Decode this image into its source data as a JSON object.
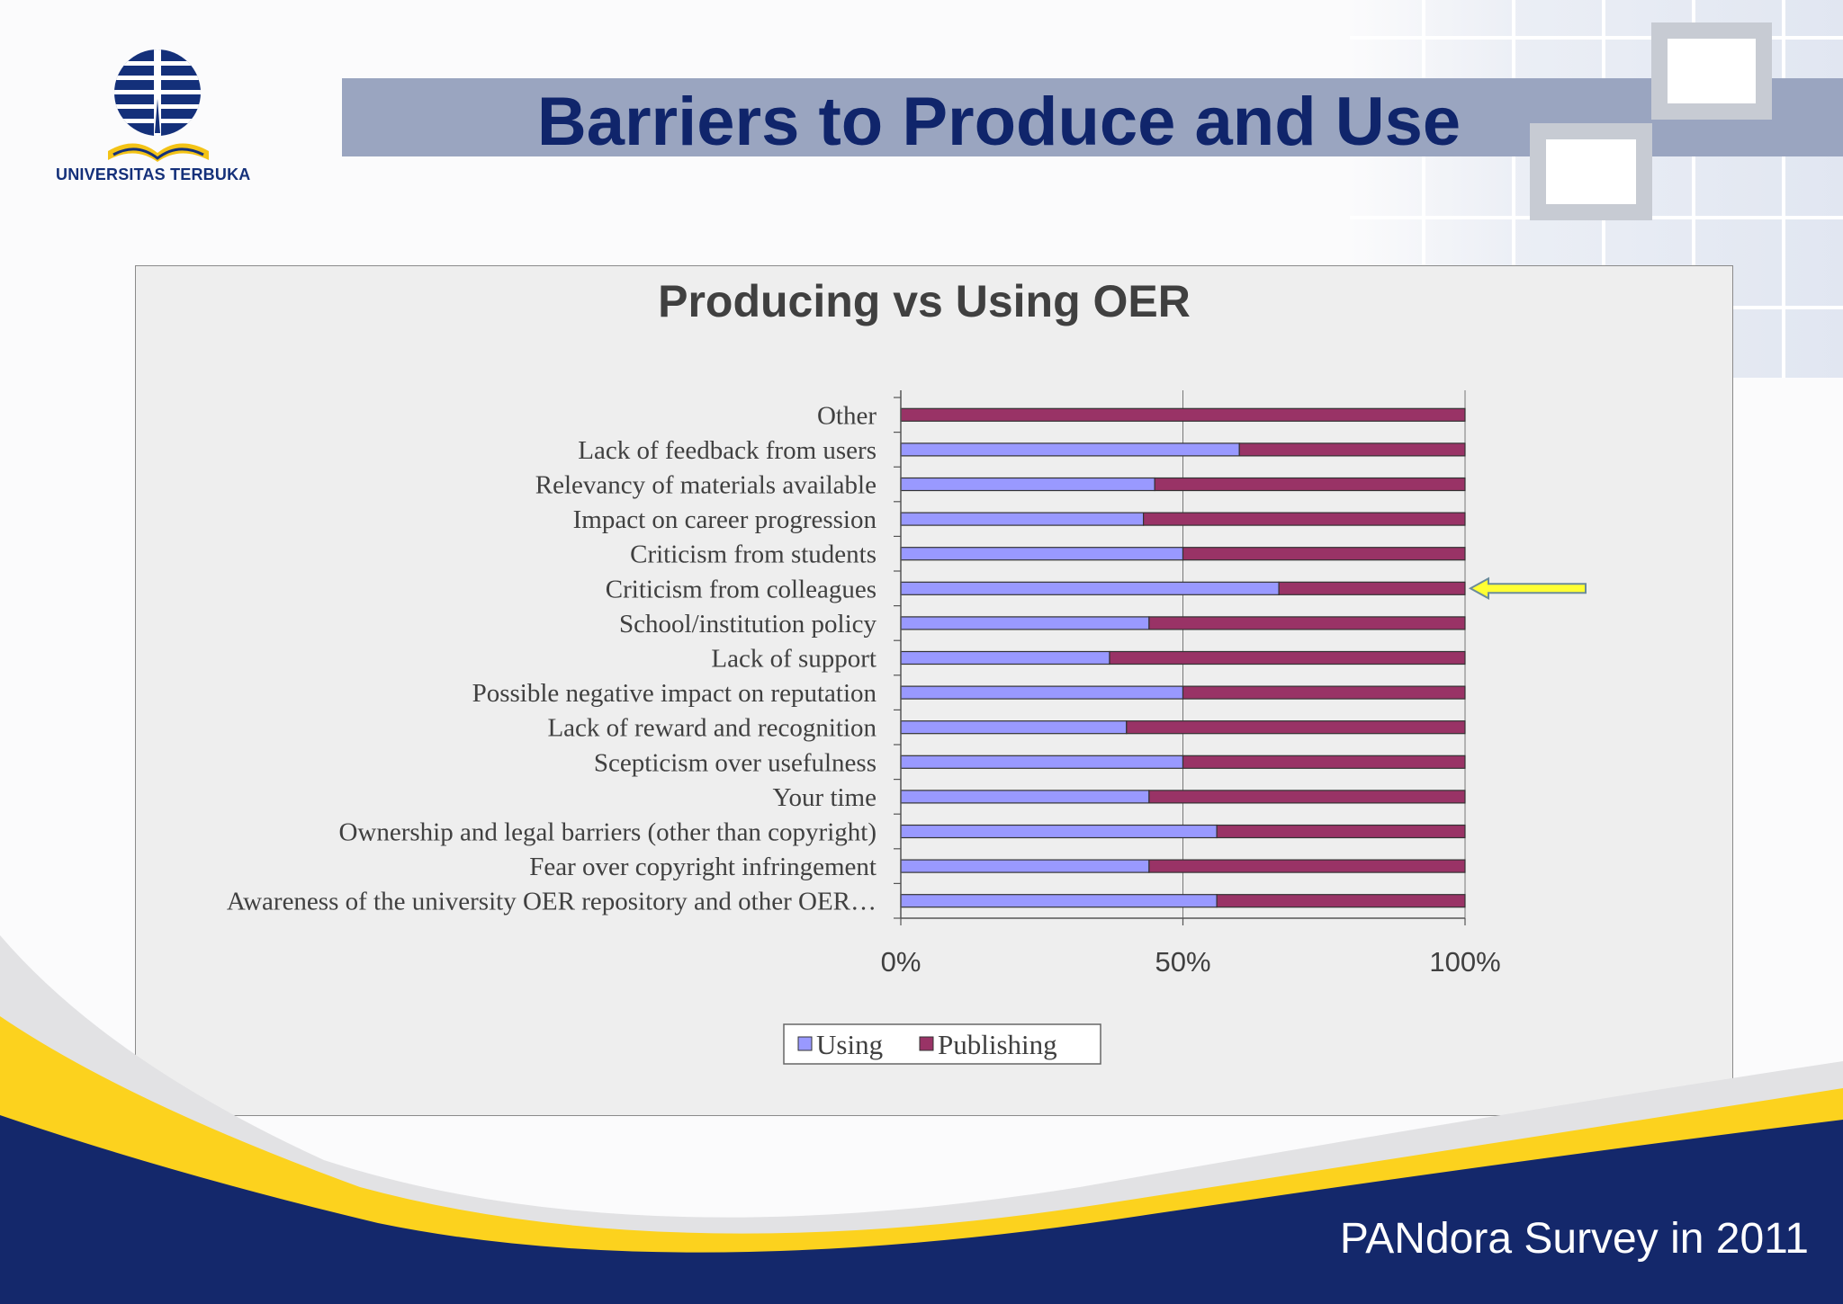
{
  "slide": {
    "title": "Barriers to Produce and Use",
    "footer": "PANdora Survey  in 2011",
    "logo_text": "UNIVERSITAS TERBUKA"
  },
  "colors": {
    "title": "#10256b",
    "title_band": "#9aa5c0",
    "using": "#9999ff",
    "publishing": "#993366",
    "footer_navy": "#14286b",
    "footer_yellow": "#fcd21e",
    "arrow": "#ffff33"
  },
  "chart_data": {
    "type": "bar",
    "orientation": "horizontal",
    "stacking": "percent",
    "title": "Producing vs Using OER",
    "categories": [
      "Other",
      "Lack of feedback from users",
      "Relevancy of materials available",
      "Impact on career progression",
      "Criticism from students",
      "Criticism from colleagues",
      "School/institution policy",
      "Lack of support",
      "Possible negative impact on reputation",
      "Lack of reward and recognition",
      "Scepticism over usefulness",
      "Your time",
      "Ownership and legal barriers (other than copyright)",
      "Fear over copyright infringement",
      "Awareness of the university OER repository and other OER…"
    ],
    "series": [
      {
        "name": "Using",
        "values": [
          0,
          60,
          45,
          43,
          50,
          67,
          44,
          37,
          50,
          40,
          50,
          44,
          56,
          44,
          56
        ]
      },
      {
        "name": "Publishing",
        "values": [
          100,
          40,
          55,
          57,
          50,
          33,
          56,
          63,
          50,
          60,
          50,
          56,
          44,
          56,
          44
        ]
      }
    ],
    "x_ticks": [
      "0%",
      "50%",
      "100%"
    ],
    "xlim": [
      0,
      100
    ],
    "grid": true,
    "legend_position": "bottom",
    "annotation": {
      "type": "arrow",
      "target": "Criticism from colleagues"
    }
  }
}
